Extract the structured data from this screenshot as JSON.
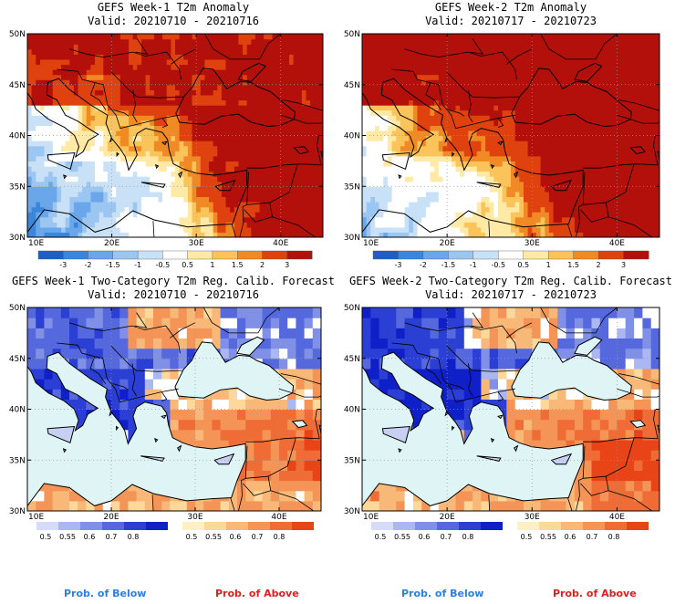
{
  "panels": [
    {
      "title": "GEFS Week-1 T2m Anomaly",
      "valid": "Valid: 20210710 - 20210716",
      "kind": "anomaly",
      "week": 1
    },
    {
      "title": "GEFS Week-2 T2m Anomaly",
      "valid": "Valid: 20210717 - 20210723",
      "kind": "anomaly",
      "week": 2
    },
    {
      "title": "GEFS Week-1 Two-Category T2m Reg. Calib. Forecast",
      "valid": "Valid: 20210710 - 20210716",
      "kind": "prob",
      "week": 1
    },
    {
      "title": "GEFS Week-2 Two-Category T2m Reg. Calib. Forecast",
      "valid": "Valid: 20210717 - 20210723",
      "kind": "prob",
      "week": 2
    }
  ],
  "footer": {
    "below_label": "Prob. of Below",
    "above_label": "Prob. of Above"
  },
  "chart_data": {
    "type": "heatmap",
    "region": "Eastern Mediterranean / Black Sea",
    "x_ticks": [
      "10E",
      "20E",
      "30E",
      "40E"
    ],
    "y_ticks": [
      "50N",
      "45N",
      "40N",
      "35N",
      "30N"
    ],
    "xlim": [
      10,
      45
    ],
    "ylim": [
      30,
      50
    ],
    "anomaly_scale": {
      "labels": [
        "-3",
        "-2",
        "-1.5",
        "-1",
        "-0.5",
        "0.5",
        "1",
        "1.5",
        "2",
        "3"
      ],
      "colors": [
        "#1f5fc4",
        "#3b86db",
        "#6aa7ea",
        "#9cc6f2",
        "#c9e1f7",
        "#ffffff",
        "#ffe9a6",
        "#fbc45a",
        "#f08a24",
        "#e0420f",
        "#b3100c"
      ]
    },
    "prob_below_scale": {
      "labels": [
        "0.5",
        "0.55",
        "0.6",
        "0.7",
        "0.8"
      ],
      "colors": [
        "#d6dcf7",
        "#aab7f0",
        "#7f90e6",
        "#5568dd",
        "#2b3fd4",
        "#1020c8"
      ]
    },
    "prob_above_scale": {
      "labels": [
        "0.5",
        "0.55",
        "0.6",
        "0.7",
        "0.8"
      ],
      "colors": [
        "#fff0c2",
        "#fdd89a",
        "#f8b878",
        "#f49456",
        "#ef6c36",
        "#e84418"
      ]
    },
    "legend": "bottom"
  }
}
